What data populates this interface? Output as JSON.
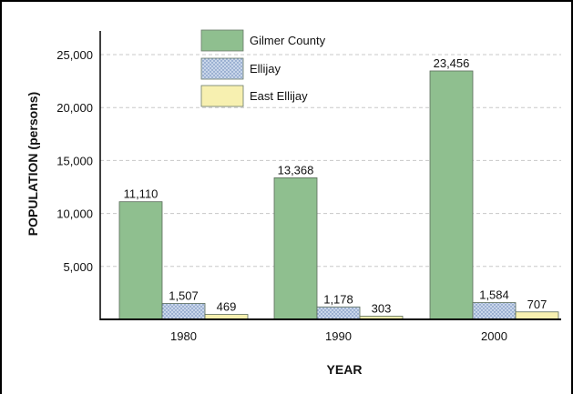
{
  "chart_data": {
    "type": "bar",
    "title": "",
    "xlabel": "YEAR",
    "ylabel": "POPULATION (persons)",
    "categories": [
      "1980",
      "1990",
      "2000"
    ],
    "ylim": [
      0,
      27000
    ],
    "yticks": [
      5000,
      10000,
      15000,
      20000,
      25000
    ],
    "ytick_labels": [
      "5,000",
      "10,000",
      "15,000",
      "20,000",
      "25,000"
    ],
    "grid": "horizontal dashed",
    "legend_position": "top-left",
    "series": [
      {
        "name": "Gilmer County",
        "values": [
          11110,
          13368,
          23456
        ],
        "labels": [
          "11,110",
          "13,368",
          "23,456"
        ],
        "color": "#8fbf8f",
        "pattern": "solid"
      },
      {
        "name": "Ellijay",
        "values": [
          1507,
          1178,
          1584
        ],
        "labels": [
          "1,507",
          "1,178",
          "1,584"
        ],
        "color": "#b8c8e0",
        "pattern": "dotted"
      },
      {
        "name": "East Ellijay",
        "values": [
          469,
          303,
          707
        ],
        "labels": [
          "469",
          "303",
          "707"
        ],
        "color": "#f7f0b0",
        "pattern": "solid"
      }
    ]
  }
}
